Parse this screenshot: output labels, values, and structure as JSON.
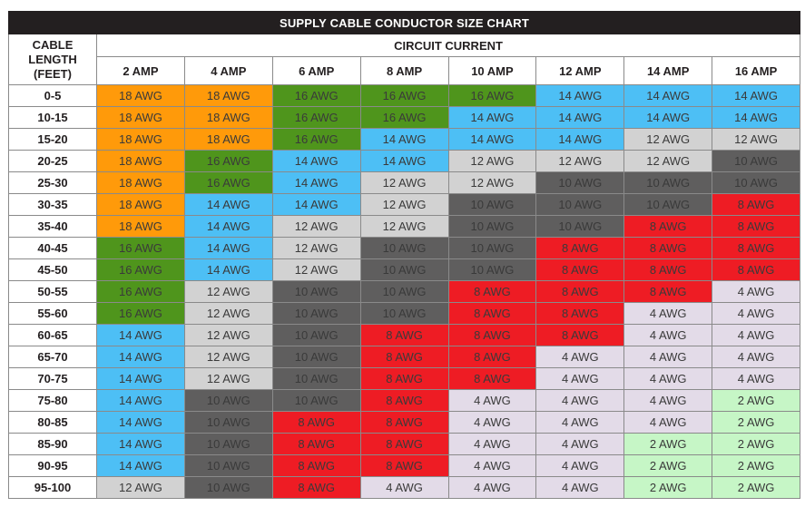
{
  "title": "SUPPLY CABLE CONDUCTOR SIZE CHART",
  "corner_label": [
    "CABLE",
    "LENGTH",
    "(FEET)"
  ],
  "group_label": "CIRCUIT CURRENT",
  "amps": [
    "2 AMP",
    "4 AMP",
    "6 AMP",
    "8 AMP",
    "10 AMP",
    "12 AMP",
    "14 AMP",
    "16 AMP"
  ],
  "colors": {
    "18 AWG": "#ff9a0a",
    "16 AWG": "#4f951c",
    "14 AWG": "#4dbff5",
    "12 AWG": "#d2d2d2",
    "10 AWG": "#5f5e5e",
    "8 AWG": "#ee1c24",
    "4 AWG": "#e3dbe8",
    "2 AWG": "#c6f6c6"
  },
  "rows": [
    {
      "length": "0-5",
      "values": [
        "18 AWG",
        "18 AWG",
        "16 AWG",
        "16 AWG",
        "16 AWG",
        "14 AWG",
        "14 AWG",
        "14 AWG"
      ]
    },
    {
      "length": "10-15",
      "values": [
        "18 AWG",
        "18 AWG",
        "16 AWG",
        "16 AWG",
        "14 AWG",
        "14 AWG",
        "14 AWG",
        "14 AWG"
      ]
    },
    {
      "length": "15-20",
      "values": [
        "18 AWG",
        "18 AWG",
        "16 AWG",
        "14 AWG",
        "14 AWG",
        "14 AWG",
        "12 AWG",
        "12 AWG"
      ]
    },
    {
      "length": "20-25",
      "values": [
        "18 AWG",
        "16 AWG",
        "14 AWG",
        "14 AWG",
        "12 AWG",
        "12 AWG",
        "12 AWG",
        "10 AWG"
      ]
    },
    {
      "length": "25-30",
      "values": [
        "18 AWG",
        "16 AWG",
        "14 AWG",
        "12 AWG",
        "12 AWG",
        "10 AWG",
        "10 AWG",
        "10 AWG"
      ]
    },
    {
      "length": "30-35",
      "values": [
        "18 AWG",
        "14 AWG",
        "14 AWG",
        "12 AWG",
        "10 AWG",
        "10 AWG",
        "10 AWG",
        "8 AWG"
      ]
    },
    {
      "length": "35-40",
      "values": [
        "18 AWG",
        "14 AWG",
        "12 AWG",
        "12 AWG",
        "10 AWG",
        "10 AWG",
        "8 AWG",
        "8 AWG"
      ]
    },
    {
      "length": "40-45",
      "values": [
        "16 AWG",
        "14 AWG",
        "12 AWG",
        "10 AWG",
        "10 AWG",
        "8 AWG",
        "8 AWG",
        "8 AWG"
      ]
    },
    {
      "length": "45-50",
      "values": [
        "16 AWG",
        "14 AWG",
        "12 AWG",
        "10 AWG",
        "10 AWG",
        "8 AWG",
        "8 AWG",
        "8 AWG"
      ]
    },
    {
      "length": "50-55",
      "values": [
        "16 AWG",
        "12 AWG",
        "10 AWG",
        "10 AWG",
        "8 AWG",
        "8 AWG",
        "8 AWG",
        "4 AWG"
      ]
    },
    {
      "length": "55-60",
      "values": [
        "16 AWG",
        "12 AWG",
        "10 AWG",
        "10 AWG",
        "8 AWG",
        "8 AWG",
        "4 AWG",
        "4 AWG"
      ]
    },
    {
      "length": "60-65",
      "values": [
        "14 AWG",
        "12 AWG",
        "10 AWG",
        "8 AWG",
        "8 AWG",
        "8 AWG",
        "4 AWG",
        "4 AWG"
      ]
    },
    {
      "length": "65-70",
      "values": [
        "14 AWG",
        "12 AWG",
        "10 AWG",
        "8 AWG",
        "8 AWG",
        "4 AWG",
        "4 AWG",
        "4 AWG"
      ]
    },
    {
      "length": "70-75",
      "values": [
        "14 AWG",
        "12 AWG",
        "10 AWG",
        "8 AWG",
        "8 AWG",
        "4 AWG",
        "4 AWG",
        "4 AWG"
      ]
    },
    {
      "length": "75-80",
      "values": [
        "14 AWG",
        "10 AWG",
        "10 AWG",
        "8 AWG",
        "4 AWG",
        "4 AWG",
        "4 AWG",
        "2 AWG"
      ]
    },
    {
      "length": "80-85",
      "values": [
        "14 AWG",
        "10 AWG",
        "8 AWG",
        "8 AWG",
        "4 AWG",
        "4 AWG",
        "4 AWG",
        "2 AWG"
      ]
    },
    {
      "length": "85-90",
      "values": [
        "14 AWG",
        "10 AWG",
        "8 AWG",
        "8 AWG",
        "4 AWG",
        "4 AWG",
        "2 AWG",
        "2 AWG"
      ]
    },
    {
      "length": "90-95",
      "values": [
        "14 AWG",
        "10 AWG",
        "8 AWG",
        "8 AWG",
        "4 AWG",
        "4 AWG",
        "2 AWG",
        "2 AWG"
      ]
    },
    {
      "length": "95-100",
      "values": [
        "12 AWG",
        "10 AWG",
        "8 AWG",
        "4 AWG",
        "4 AWG",
        "4 AWG",
        "2 AWG",
        "2 AWG"
      ]
    }
  ],
  "chart_data": {
    "type": "table",
    "title": "SUPPLY CABLE CONDUCTOR SIZE CHART",
    "row_header": "CABLE LENGTH (FEET)",
    "column_group": "CIRCUIT CURRENT",
    "columns": [
      "2 AMP",
      "4 AMP",
      "6 AMP",
      "8 AMP",
      "10 AMP",
      "12 AMP",
      "14 AMP",
      "16 AMP"
    ],
    "rows": [
      "0-5",
      "10-15",
      "15-20",
      "20-25",
      "25-30",
      "30-35",
      "35-40",
      "40-45",
      "45-50",
      "50-55",
      "55-60",
      "60-65",
      "65-70",
      "70-75",
      "75-80",
      "80-85",
      "85-90",
      "90-95",
      "95-100"
    ],
    "values": [
      [
        18,
        18,
        16,
        16,
        16,
        14,
        14,
        14
      ],
      [
        18,
        18,
        16,
        16,
        14,
        14,
        14,
        14
      ],
      [
        18,
        18,
        16,
        14,
        14,
        14,
        12,
        12
      ],
      [
        18,
        16,
        14,
        14,
        12,
        12,
        12,
        10
      ],
      [
        18,
        16,
        14,
        12,
        12,
        10,
        10,
        10
      ],
      [
        18,
        14,
        14,
        12,
        10,
        10,
        10,
        8
      ],
      [
        18,
        14,
        12,
        12,
        10,
        10,
        8,
        8
      ],
      [
        16,
        14,
        12,
        10,
        10,
        8,
        8,
        8
      ],
      [
        16,
        14,
        12,
        10,
        10,
        8,
        8,
        8
      ],
      [
        16,
        12,
        10,
        10,
        8,
        8,
        8,
        4
      ],
      [
        16,
        12,
        10,
        10,
        8,
        8,
        4,
        4
      ],
      [
        14,
        12,
        10,
        8,
        8,
        8,
        4,
        4
      ],
      [
        14,
        12,
        10,
        8,
        8,
        4,
        4,
        4
      ],
      [
        14,
        12,
        10,
        8,
        8,
        4,
        4,
        4
      ],
      [
        14,
        10,
        10,
        8,
        4,
        4,
        4,
        2
      ],
      [
        14,
        10,
        8,
        8,
        4,
        4,
        4,
        2
      ],
      [
        14,
        10,
        8,
        8,
        4,
        4,
        2,
        2
      ],
      [
        14,
        10,
        8,
        8,
        4,
        4,
        2,
        2
      ],
      [
        12,
        10,
        8,
        4,
        4,
        4,
        2,
        2
      ]
    ],
    "unit": "AWG",
    "legend": {
      "18 AWG": "#ff9a0a",
      "16 AWG": "#4f951c",
      "14 AWG": "#4dbff5",
      "12 AWG": "#d2d2d2",
      "10 AWG": "#5f5e5e",
      "8 AWG": "#ee1c24",
      "4 AWG": "#e3dbe8",
      "2 AWG": "#c6f6c6"
    }
  }
}
